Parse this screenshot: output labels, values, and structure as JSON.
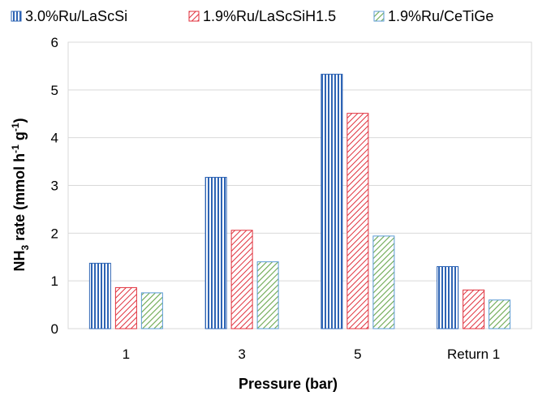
{
  "chart_data": {
    "type": "bar",
    "categories": [
      "1",
      "3",
      "5",
      "Return 1"
    ],
    "series": [
      {
        "name": "3.0%Ru/LaScSi",
        "values": [
          1.37,
          3.17,
          5.33,
          1.3
        ],
        "color": "#2e64b4",
        "pattern": "vertical-lines"
      },
      {
        "name": "1.9%Ru/LaScSiH1.5",
        "values": [
          0.86,
          2.06,
          4.51,
          0.81
        ],
        "color": "#e0303c",
        "pattern": "diagonal-lines"
      },
      {
        "name": "1.9%Ru/CeTiGe",
        "values": [
          0.75,
          1.4,
          1.94,
          0.6
        ],
        "color": "#6aa84f",
        "pattern": "diagonal-lines",
        "border_color": "#5b9bd5"
      }
    ],
    "xlabel": "Pressure (bar)",
    "ylabel": {
      "prefix": "NH",
      "sub": "3",
      "middle": " rate (mmol h",
      "sup1": "-1",
      "space": " g",
      "sup2": "-1",
      "suffix": ")"
    },
    "yticks": [
      "0",
      "1",
      "2",
      "3",
      "4",
      "5",
      "6"
    ],
    "ylim": [
      0,
      6
    ],
    "grid": true,
    "legend": "top"
  }
}
